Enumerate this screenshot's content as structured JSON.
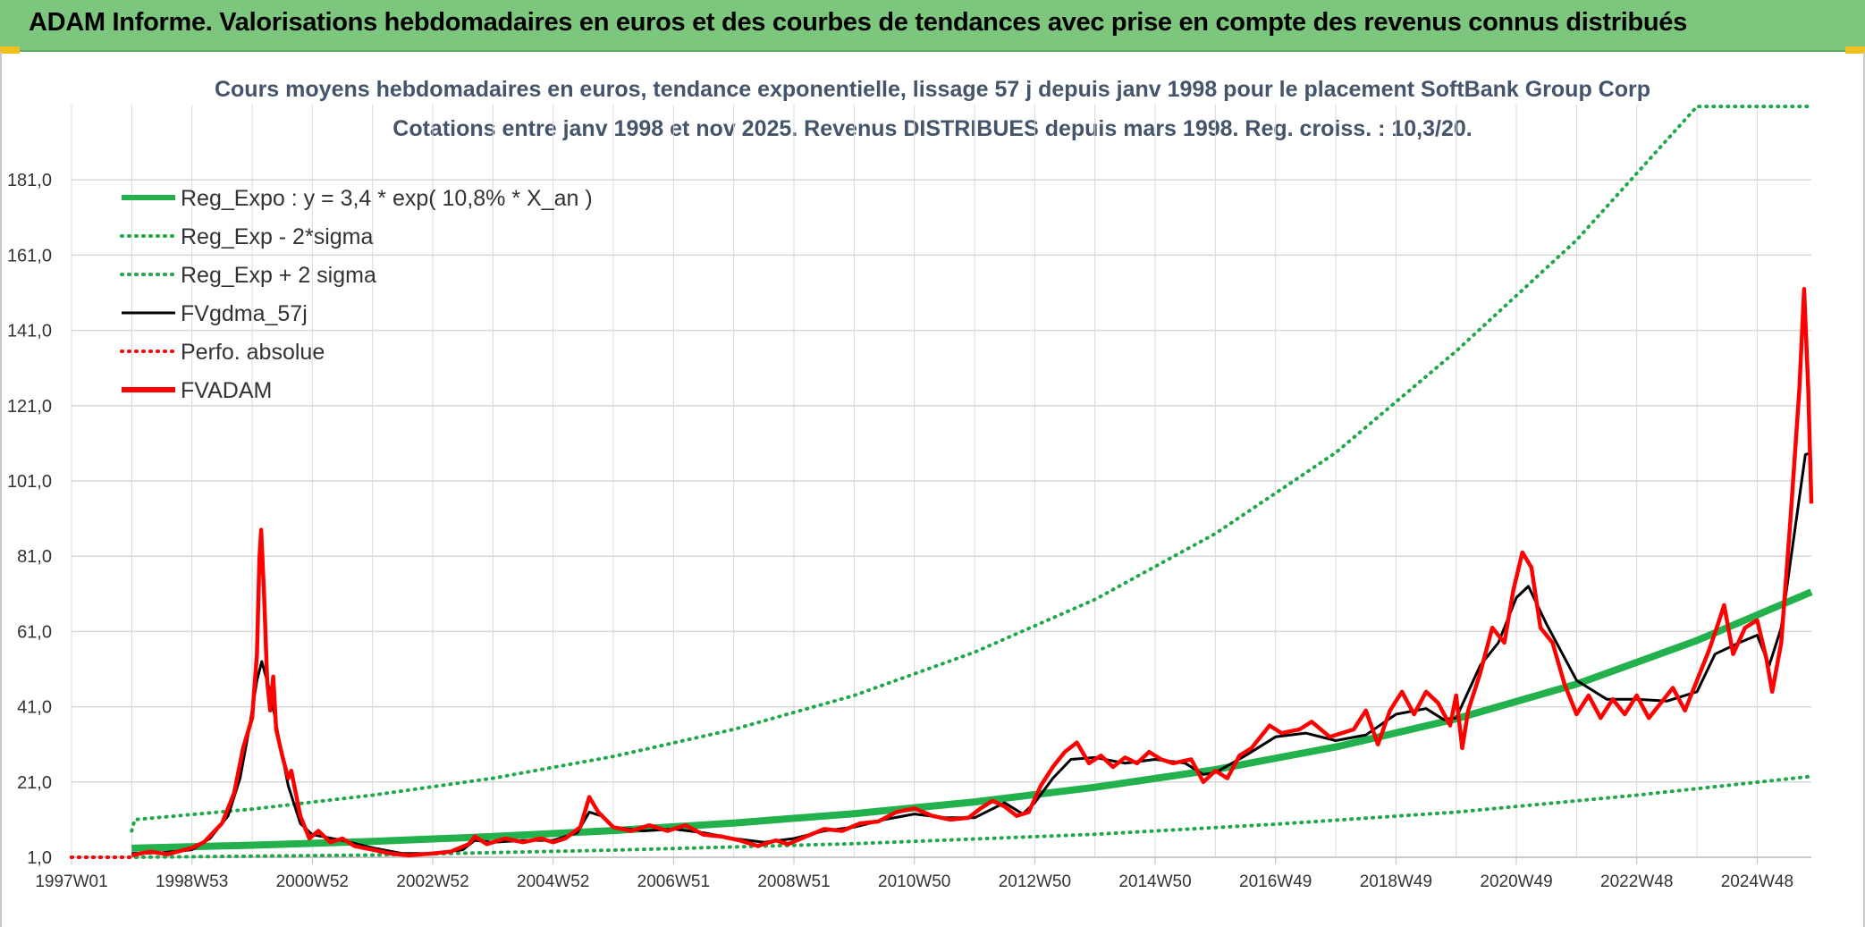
{
  "banner": {
    "title": "ADAM Informe. Valorisations hebdomadaires en euros et des courbes de tendances avec prise en compte des revenus connus distribués"
  },
  "colors": {
    "banner_bg": "#7dc67e",
    "reg_green": "#22b14c",
    "dotted_green": "#1fa84a",
    "black": "#000000",
    "red": "#ff0000",
    "title_color": "#44546a",
    "grid": "#d9d9d9"
  },
  "chart_data": {
    "type": "line",
    "title": "Cours moyens hebdomadaires en euros, tendance exponentielle, lissage 57 j depuis janv 1998 pour le placement SoftBank Group Corp",
    "subtitle": "Cotations entre janv 1998 et nov 2025. Revenus DISTRIBUES depuis mars 1998. Reg. croiss. : 10,3/20.",
    "xlabel": "",
    "ylabel": "",
    "x_range": [
      1997.0,
      2025.9
    ],
    "ylim": [
      1,
      201
    ],
    "grid": true,
    "legend_position": "top-left",
    "y_ticks": [
      "1,0",
      "21,0",
      "41,0",
      "61,0",
      "81,0",
      "101,0",
      "121,0",
      "141,0",
      "161,0",
      "181,0"
    ],
    "y_tick_values": [
      1,
      21,
      41,
      61,
      81,
      101,
      121,
      141,
      161,
      181
    ],
    "x_ticks": [
      "1997W01",
      "1998W53",
      "2000W52",
      "2002W52",
      "2004W52",
      "2006W51",
      "2008W51",
      "2010W50",
      "2012W50",
      "2014W50",
      "2016W49",
      "2018W49",
      "2020W49",
      "2022W48",
      "2024W48"
    ],
    "x_tick_values": [
      1997.0,
      1999.0,
      2001.0,
      2003.0,
      2005.0,
      2007.0,
      2009.0,
      2011.0,
      2013.0,
      2015.0,
      2017.0,
      2019.0,
      2021.0,
      2023.0,
      2025.0
    ],
    "series": [
      {
        "name": "Reg_Expo : y = 3,4 * exp( 10,8% *  X_an )",
        "style": "solid-thick",
        "color": "#22b14c",
        "points": [
          [
            1998.0,
            3.4
          ],
          [
            2000.0,
            4.2
          ],
          [
            2002.0,
            5.2
          ],
          [
            2004.0,
            6.5
          ],
          [
            2006.0,
            8.1
          ],
          [
            2008.0,
            10.1
          ],
          [
            2010.0,
            12.6
          ],
          [
            2012.0,
            15.7
          ],
          [
            2014.0,
            19.6
          ],
          [
            2016.0,
            24.3
          ],
          [
            2018.0,
            30.3
          ],
          [
            2020.0,
            37.8
          ],
          [
            2022.0,
            47.0
          ],
          [
            2024.0,
            58.6
          ],
          [
            2025.9,
            71.5
          ]
        ]
      },
      {
        "name": "Reg_Exp - 2*sigma",
        "style": "dotted",
        "color": "#1fa84a",
        "points": [
          [
            1997.0,
            1.0
          ],
          [
            1998.0,
            1.0
          ],
          [
            2002.0,
            1.6
          ],
          [
            2006.0,
            2.9
          ],
          [
            2010.0,
            4.6
          ],
          [
            2014.0,
            7.1
          ],
          [
            2017.0,
            9.8
          ],
          [
            2020.0,
            13.0
          ],
          [
            2023.0,
            17.5
          ],
          [
            2025.9,
            22.5
          ]
        ]
      },
      {
        "name": "Reg_Exp + 2 sigma",
        "style": "dotted",
        "color": "#1fa84a",
        "points": [
          [
            1998.0,
            8.0
          ],
          [
            1998.05,
            11.0
          ],
          [
            2000.0,
            13.8
          ],
          [
            2002.0,
            17.5
          ],
          [
            2004.0,
            22.0
          ],
          [
            2006.0,
            27.8
          ],
          [
            2008.0,
            35.0
          ],
          [
            2010.0,
            44.0
          ],
          [
            2012.0,
            55.5
          ],
          [
            2014.0,
            69.5
          ],
          [
            2016.0,
            87.0
          ],
          [
            2018.0,
            108.5
          ],
          [
            2020.0,
            135.5
          ],
          [
            2022.0,
            165.0
          ],
          [
            2024.0,
            200.5
          ],
          [
            2025.9,
            200.5
          ]
        ]
      },
      {
        "name": "FVgdma_57j",
        "style": "solid",
        "color": "#000000",
        "points": [
          [
            1998.0,
            2.0
          ],
          [
            1998.5,
            2.2
          ],
          [
            1999.0,
            3.0
          ],
          [
            1999.3,
            6.0
          ],
          [
            1999.6,
            12.0
          ],
          [
            1999.8,
            22.0
          ],
          [
            1999.95,
            35.0
          ],
          [
            2000.08,
            48.0
          ],
          [
            2000.16,
            53.0
          ],
          [
            2000.3,
            45.0
          ],
          [
            2000.45,
            32.0
          ],
          [
            2000.6,
            20.0
          ],
          [
            2000.8,
            10.0
          ],
          [
            2001.0,
            7.0
          ],
          [
            2001.5,
            5.5
          ],
          [
            2002.0,
            3.5
          ],
          [
            2002.5,
            2.0
          ],
          [
            2003.0,
            2.0
          ],
          [
            2003.5,
            3.0
          ],
          [
            2003.7,
            5.5
          ],
          [
            2004.0,
            5.0
          ],
          [
            2004.5,
            5.5
          ],
          [
            2005.0,
            5.5
          ],
          [
            2005.4,
            7.5
          ],
          [
            2005.6,
            13.0
          ],
          [
            2005.8,
            12.0
          ],
          [
            2006.0,
            9.0
          ],
          [
            2006.5,
            8.0
          ],
          [
            2007.0,
            8.5
          ],
          [
            2007.5,
            7.5
          ],
          [
            2008.0,
            6.0
          ],
          [
            2008.5,
            5.0
          ],
          [
            2009.0,
            6.0
          ],
          [
            2009.5,
            8.0
          ],
          [
            2010.0,
            9.0
          ],
          [
            2010.5,
            11.0
          ],
          [
            2011.0,
            12.5
          ],
          [
            2011.5,
            11.5
          ],
          [
            2012.0,
            11.5
          ],
          [
            2012.5,
            15.5
          ],
          [
            2012.8,
            12.5
          ],
          [
            2013.0,
            15.5
          ],
          [
            2013.3,
            22.0
          ],
          [
            2013.6,
            27.0
          ],
          [
            2014.0,
            27.5
          ],
          [
            2014.5,
            26.0
          ],
          [
            2015.0,
            27.0
          ],
          [
            2015.5,
            26.0
          ],
          [
            2015.8,
            23.0
          ],
          [
            2016.0,
            23.5
          ],
          [
            2016.5,
            28.0
          ],
          [
            2017.0,
            33.0
          ],
          [
            2017.5,
            34.0
          ],
          [
            2018.0,
            32.0
          ],
          [
            2018.5,
            33.5
          ],
          [
            2019.0,
            39.0
          ],
          [
            2019.5,
            40.5
          ],
          [
            2019.8,
            37.5
          ],
          [
            2020.0,
            38.0
          ],
          [
            2020.4,
            52.0
          ],
          [
            2020.7,
            58.0
          ],
          [
            2021.0,
            70.0
          ],
          [
            2021.2,
            73.0
          ],
          [
            2021.5,
            63.0
          ],
          [
            2022.0,
            48.0
          ],
          [
            2022.5,
            43.0
          ],
          [
            2023.0,
            43.0
          ],
          [
            2023.5,
            42.5
          ],
          [
            2024.0,
            45.0
          ],
          [
            2024.3,
            55.0
          ],
          [
            2024.7,
            58.0
          ],
          [
            2025.0,
            60.0
          ],
          [
            2025.2,
            52.0
          ],
          [
            2025.4,
            62.0
          ],
          [
            2025.6,
            85.0
          ],
          [
            2025.8,
            108.0
          ],
          [
            2025.9,
            108.5
          ]
        ]
      },
      {
        "name": "Perfo. absolue",
        "style": "dotted",
        "color": "#ff0000",
        "points": [
          [
            1997.0,
            1.0
          ],
          [
            1998.0,
            1.0
          ]
        ]
      },
      {
        "name": "FVADAM",
        "style": "solid-thick",
        "color": "#ff0000",
        "points": [
          [
            1998.0,
            1.5
          ],
          [
            1998.3,
            2.5
          ],
          [
            1998.6,
            1.8
          ],
          [
            1999.0,
            3.5
          ],
          [
            1999.2,
            5.0
          ],
          [
            1999.5,
            10.0
          ],
          [
            1999.7,
            18.0
          ],
          [
            1999.85,
            30.0
          ],
          [
            2000.0,
            38.0
          ],
          [
            2000.08,
            55.0
          ],
          [
            2000.12,
            80.0
          ],
          [
            2000.15,
            88.0
          ],
          [
            2000.2,
            70.0
          ],
          [
            2000.25,
            48.0
          ],
          [
            2000.3,
            40.0
          ],
          [
            2000.35,
            49.0
          ],
          [
            2000.4,
            35.0
          ],
          [
            2000.5,
            28.0
          ],
          [
            2000.6,
            22.0
          ],
          [
            2000.65,
            24.0
          ],
          [
            2000.8,
            12.0
          ],
          [
            2000.95,
            6.0
          ],
          [
            2001.1,
            8.0
          ],
          [
            2001.3,
            5.0
          ],
          [
            2001.5,
            6.0
          ],
          [
            2001.7,
            4.0
          ],
          [
            2002.0,
            3.0
          ],
          [
            2002.3,
            2.0
          ],
          [
            2002.6,
            1.5
          ],
          [
            2003.0,
            2.0
          ],
          [
            2003.3,
            2.5
          ],
          [
            2003.6,
            4.5
          ],
          [
            2003.7,
            6.5
          ],
          [
            2003.9,
            4.5
          ],
          [
            2004.2,
            6.0
          ],
          [
            2004.5,
            5.0
          ],
          [
            2004.8,
            6.0
          ],
          [
            2005.0,
            5.0
          ],
          [
            2005.2,
            6.0
          ],
          [
            2005.45,
            9.0
          ],
          [
            2005.6,
            17.0
          ],
          [
            2005.75,
            13.0
          ],
          [
            2006.0,
            9.0
          ],
          [
            2006.3,
            8.0
          ],
          [
            2006.6,
            9.5
          ],
          [
            2006.9,
            8.0
          ],
          [
            2007.2,
            9.5
          ],
          [
            2007.5,
            7.0
          ],
          [
            2007.8,
            6.5
          ],
          [
            2008.1,
            5.5
          ],
          [
            2008.4,
            4.0
          ],
          [
            2008.7,
            5.5
          ],
          [
            2008.9,
            4.5
          ],
          [
            2009.2,
            6.5
          ],
          [
            2009.5,
            8.5
          ],
          [
            2009.8,
            8.0
          ],
          [
            2010.1,
            10.0
          ],
          [
            2010.4,
            10.5
          ],
          [
            2010.7,
            13.0
          ],
          [
            2011.0,
            14.0
          ],
          [
            2011.3,
            12.0
          ],
          [
            2011.6,
            11.0
          ],
          [
            2011.9,
            11.5
          ],
          [
            2012.1,
            14.0
          ],
          [
            2012.3,
            16.0
          ],
          [
            2012.5,
            14.5
          ],
          [
            2012.7,
            12.0
          ],
          [
            2012.9,
            13.0
          ],
          [
            2013.1,
            20.0
          ],
          [
            2013.3,
            25.0
          ],
          [
            2013.5,
            29.0
          ],
          [
            2013.7,
            31.5
          ],
          [
            2013.9,
            26.0
          ],
          [
            2014.1,
            28.0
          ],
          [
            2014.3,
            25.0
          ],
          [
            2014.5,
            27.5
          ],
          [
            2014.7,
            26.0
          ],
          [
            2014.9,
            29.0
          ],
          [
            2015.1,
            27.0
          ],
          [
            2015.3,
            26.0
          ],
          [
            2015.6,
            27.0
          ],
          [
            2015.8,
            21.0
          ],
          [
            2016.0,
            24.0
          ],
          [
            2016.2,
            22.0
          ],
          [
            2016.4,
            28.0
          ],
          [
            2016.6,
            30.0
          ],
          [
            2016.9,
            36.0
          ],
          [
            2017.1,
            34.0
          ],
          [
            2017.4,
            35.0
          ],
          [
            2017.6,
            37.0
          ],
          [
            2017.9,
            33.0
          ],
          [
            2018.1,
            34.0
          ],
          [
            2018.3,
            35.0
          ],
          [
            2018.5,
            40.0
          ],
          [
            2018.7,
            31.0
          ],
          [
            2018.9,
            40.0
          ],
          [
            2019.1,
            45.0
          ],
          [
            2019.3,
            39.0
          ],
          [
            2019.5,
            45.0
          ],
          [
            2019.7,
            42.0
          ],
          [
            2019.9,
            36.0
          ],
          [
            2020.0,
            44.0
          ],
          [
            2020.1,
            30.0
          ],
          [
            2020.2,
            40.0
          ],
          [
            2020.4,
            50.0
          ],
          [
            2020.6,
            62.0
          ],
          [
            2020.8,
            58.0
          ],
          [
            2020.95,
            72.0
          ],
          [
            2021.1,
            82.0
          ],
          [
            2021.25,
            78.0
          ],
          [
            2021.4,
            62.0
          ],
          [
            2021.6,
            58.0
          ],
          [
            2021.8,
            47.0
          ],
          [
            2022.0,
            39.0
          ],
          [
            2022.2,
            44.0
          ],
          [
            2022.4,
            38.0
          ],
          [
            2022.6,
            43.0
          ],
          [
            2022.8,
            39.0
          ],
          [
            2023.0,
            44.0
          ],
          [
            2023.2,
            38.0
          ],
          [
            2023.4,
            42.0
          ],
          [
            2023.6,
            46.0
          ],
          [
            2023.8,
            40.0
          ],
          [
            2024.0,
            48.0
          ],
          [
            2024.2,
            56.0
          ],
          [
            2024.35,
            63.0
          ],
          [
            2024.45,
            68.0
          ],
          [
            2024.6,
            55.0
          ],
          [
            2024.8,
            62.0
          ],
          [
            2025.0,
            64.0
          ],
          [
            2025.15,
            54.0
          ],
          [
            2025.25,
            45.0
          ],
          [
            2025.4,
            58.0
          ],
          [
            2025.55,
            90.0
          ],
          [
            2025.7,
            125.0
          ],
          [
            2025.78,
            152.0
          ],
          [
            2025.85,
            125.0
          ],
          [
            2025.9,
            95.0
          ]
        ]
      }
    ]
  }
}
